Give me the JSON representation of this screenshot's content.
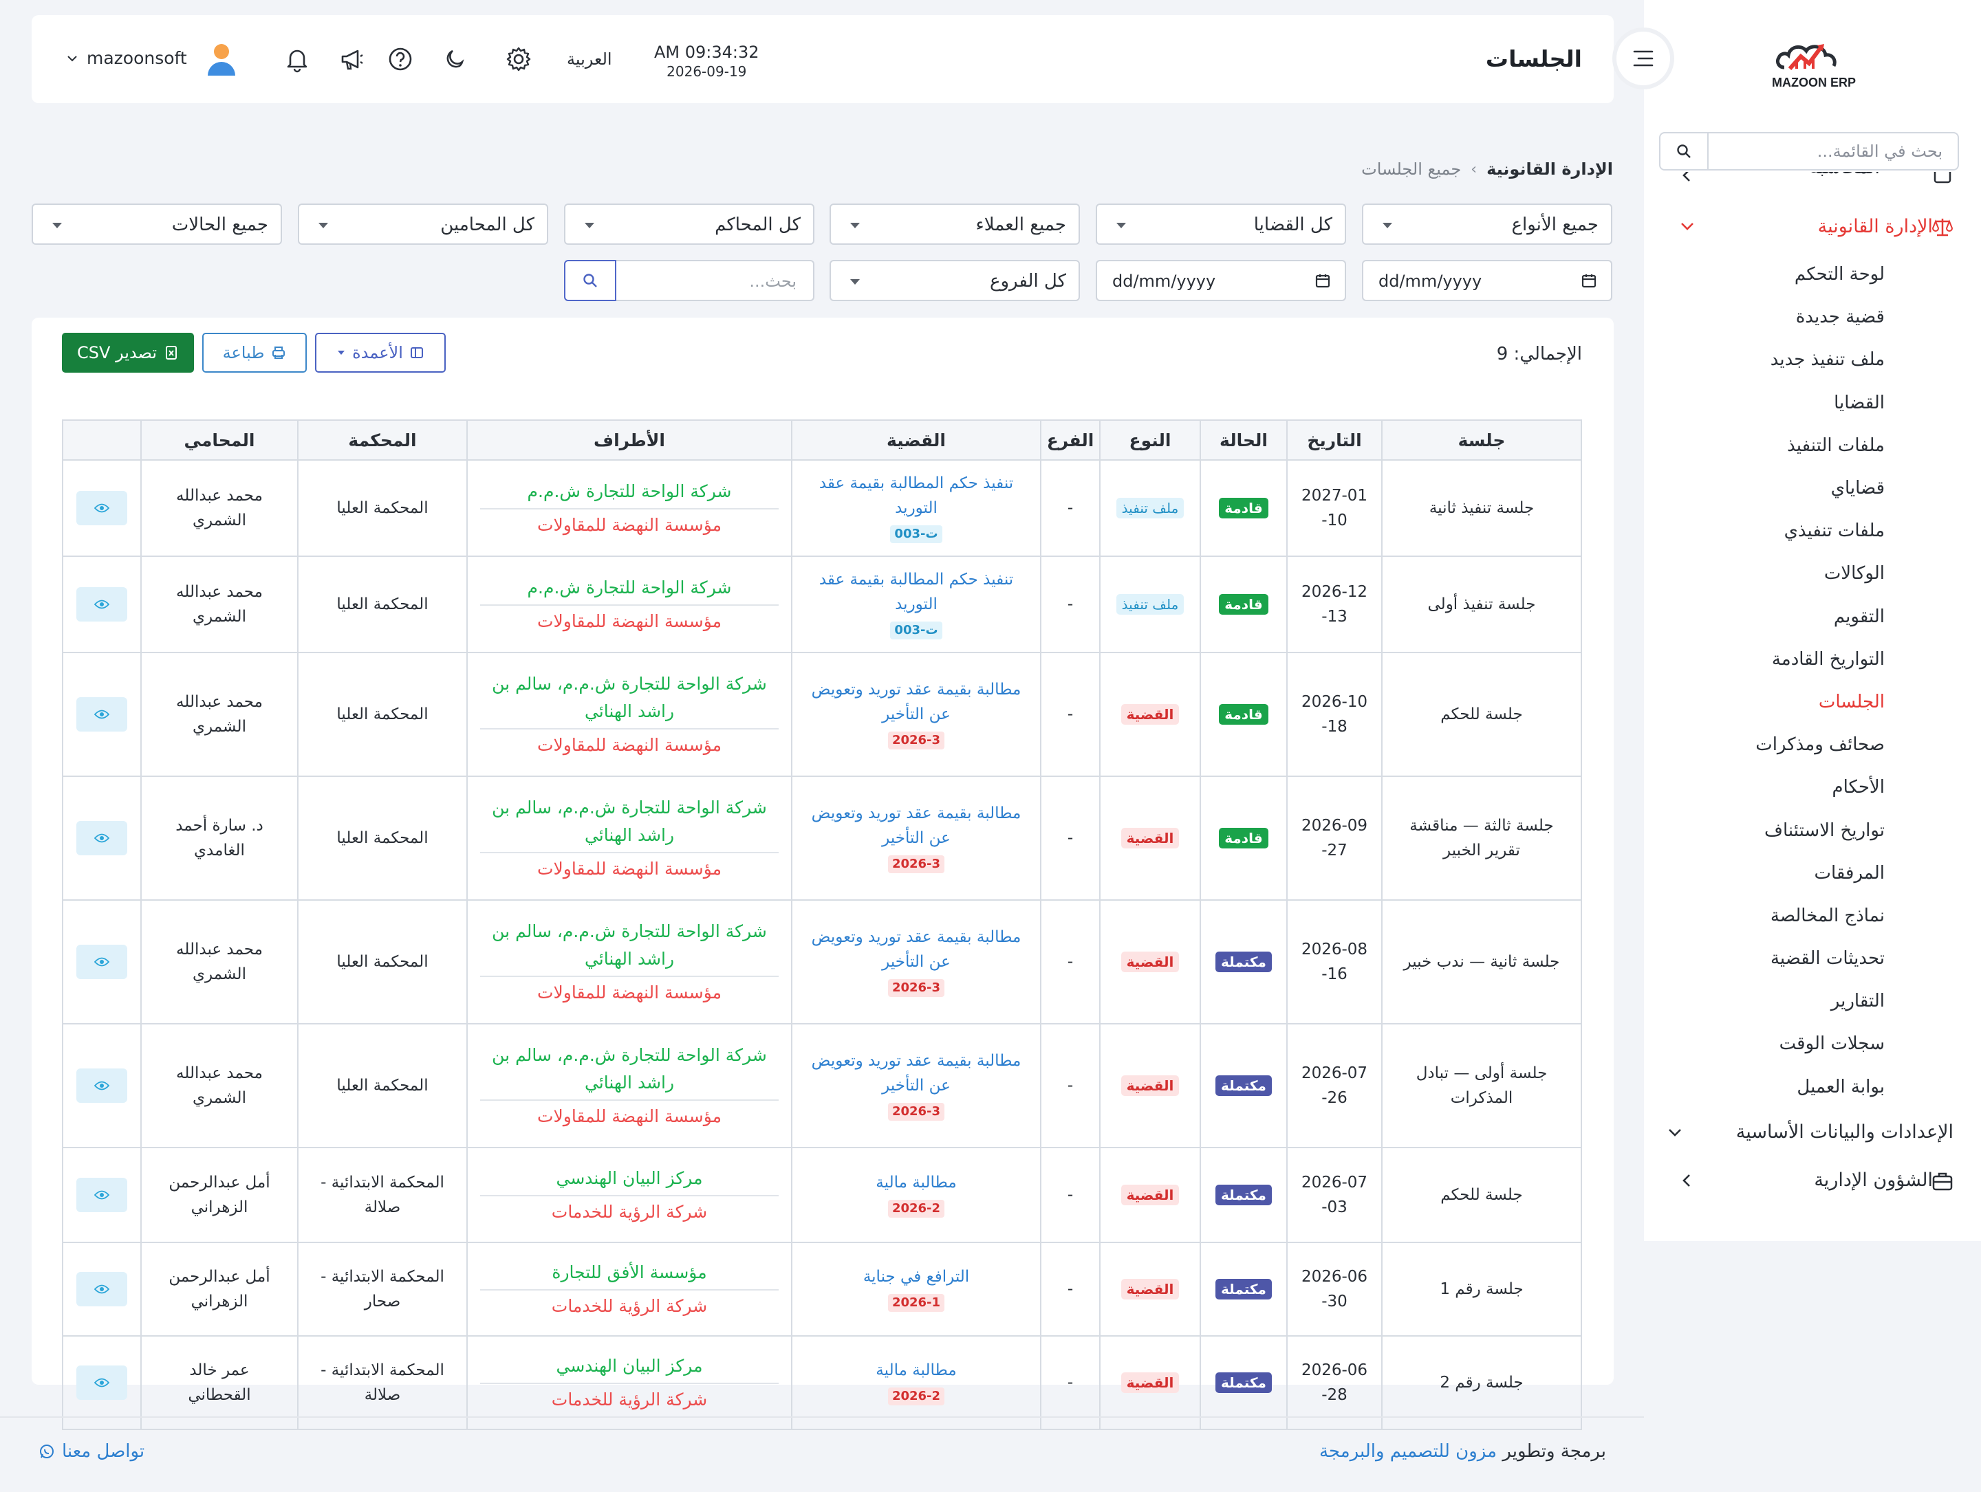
{
  "brand": {
    "name": "MAZOON ERP"
  },
  "sidebar": {
    "search_placeholder": "بحث في القائمة...",
    "cut_item": "المحاسبة",
    "group_legal": "الإدارة القانونية",
    "items": [
      "لوحة التحكم",
      "قضية جديدة",
      "ملف تنفيذ جديد",
      "القضايا",
      "ملفات التنفيذ",
      "قضاياي",
      "ملفات تنفيذي",
      "الوكالات",
      "التقويم",
      "التواريخ القادمة",
      "الجلسات",
      "صحائف ومذكرات",
      "الأحكام",
      "تواريخ الاستئناف",
      "المرفقات",
      "نماذج المخالصة",
      "تحديثات القضية",
      "التقارير",
      "سجلات الوقت",
      "بوابة العميل"
    ],
    "current_index": 10,
    "group_settings": "الإعدادات والبيانات الأساسية",
    "group_admin": "الشؤون الإدارية"
  },
  "header": {
    "title": "الجلسات",
    "time": "AM 09:34:32",
    "date": "2026-09-19",
    "language": "العربية",
    "user": "mazoonsoft"
  },
  "breadcrumb": {
    "root": "الإدارة القانونية",
    "separator": "›",
    "current": "جميع الجلسات"
  },
  "filters": {
    "types": "جميع الأنواع",
    "cases": "كل القضايا",
    "clients": "جميع العملاء",
    "courts": "كل المحاكم",
    "lawyers": "كل المحامين",
    "statuses": "جميع الحالات",
    "date_from": "dd/mm/yyyy",
    "date_to": "dd/mm/yyyy",
    "branches": "كل الفروع",
    "search_placeholder": "بحث..."
  },
  "toolbar": {
    "total_label": "الإجمالي: 9",
    "columns_label": "الأعمدة",
    "print_label": "طباعة",
    "csv_label": "تصدير CSV"
  },
  "table": {
    "headers": [
      "جلسة",
      "التاريخ",
      "الحالة",
      "النوع",
      "الفرع",
      "القضية",
      "الأطراف",
      "المحكمة",
      "المحامي",
      ""
    ],
    "rows": [
      {
        "session": "جلسة تنفيذ ثانية",
        "date": "2027-01-10",
        "status": "قادمة",
        "status_kind": "green",
        "type": "ملف تنفيذ",
        "type_kind": "cyan",
        "branch": "-",
        "case_title": "تنفيذ حكم المطالبة بقيمة عقد التوريد",
        "case_no": "ت-003",
        "case_no_kind": "cyan",
        "party_a": "شركة الواحة للتجارة ش.م.م",
        "party_b": "مؤسسة النهضة للمقاولات",
        "court": "المحكمة العليا",
        "lawyer": "محمد عبدالله الشمري"
      },
      {
        "session": "جلسة تنفيذ أولى",
        "date": "2026-12-13",
        "status": "قادمة",
        "status_kind": "green",
        "type": "ملف تنفيذ",
        "type_kind": "cyan",
        "branch": "-",
        "case_title": "تنفيذ حكم المطالبة بقيمة عقد التوريد",
        "case_no": "ت-003",
        "case_no_kind": "cyan",
        "party_a": "شركة الواحة للتجارة ش.م.م",
        "party_b": "مؤسسة النهضة للمقاولات",
        "court": "المحكمة العليا",
        "lawyer": "محمد عبدالله الشمري"
      },
      {
        "session": "جلسة للحكم",
        "date": "2026-10-18",
        "status": "قادمة",
        "status_kind": "green",
        "type": "القضية",
        "type_kind": "red",
        "branch": "-",
        "case_title": "مطالبة بقيمة عقد توريد وتعويض عن التأخير",
        "case_no": "2026-3",
        "case_no_kind": "red",
        "party_a": "شركة الواحة للتجارة ش.م.م، سالم بن راشد الهنائي",
        "party_b": "مؤسسة النهضة للمقاولات",
        "court": "المحكمة العليا",
        "lawyer": "محمد عبدالله الشمري"
      },
      {
        "session": "جلسة ثالثة — مناقشة تقرير الخبير",
        "date": "2026-09-27",
        "status": "قادمة",
        "status_kind": "green",
        "type": "القضية",
        "type_kind": "red",
        "branch": "-",
        "case_title": "مطالبة بقيمة عقد توريد وتعويض عن التأخير",
        "case_no": "2026-3",
        "case_no_kind": "red",
        "party_a": "شركة الواحة للتجارة ش.م.م، سالم بن راشد الهنائي",
        "party_b": "مؤسسة النهضة للمقاولات",
        "court": "المحكمة العليا",
        "lawyer": "د. سارة أحمد الغامدي"
      },
      {
        "session": "جلسة ثانية — ندب خبير",
        "date": "2026-08-16",
        "status": "مكتملة",
        "status_kind": "navy",
        "type": "القضية",
        "type_kind": "red",
        "branch": "-",
        "case_title": "مطالبة بقيمة عقد توريد وتعويض عن التأخير",
        "case_no": "2026-3",
        "case_no_kind": "red",
        "party_a": "شركة الواحة للتجارة ش.م.م، سالم بن راشد الهنائي",
        "party_b": "مؤسسة النهضة للمقاولات",
        "court": "المحكمة العليا",
        "lawyer": "محمد عبدالله الشمري"
      },
      {
        "session": "جلسة أولى — تبادل المذكرات",
        "date": "2026-07-26",
        "status": "مكتملة",
        "status_kind": "navy",
        "type": "القضية",
        "type_kind": "red",
        "branch": "-",
        "case_title": "مطالبة بقيمة عقد توريد وتعويض عن التأخير",
        "case_no": "2026-3",
        "case_no_kind": "red",
        "party_a": "شركة الواحة للتجارة ش.م.م، سالم بن راشد الهنائي",
        "party_b": "مؤسسة النهضة للمقاولات",
        "court": "المحكمة العليا",
        "lawyer": "محمد عبدالله الشمري"
      },
      {
        "session": "جلسة للحكم",
        "date": "2026-07-03",
        "status": "مكتملة",
        "status_kind": "navy",
        "type": "القضية",
        "type_kind": "red",
        "branch": "-",
        "case_title": "مطالبة مالية",
        "case_no": "2026-2",
        "case_no_kind": "red",
        "party_a": "مركز البيان الهندسي",
        "party_b": "شركة الرؤية للخدمات",
        "court": "المحكمة الابتدائية - صلالة",
        "lawyer": "أمل عبدالرحمن الزهراني"
      },
      {
        "session": "جلسة رقم 1",
        "date": "2026-06-30",
        "status": "مكتملة",
        "status_kind": "navy",
        "type": "القضية",
        "type_kind": "red",
        "branch": "-",
        "case_title": "الترافع في جناية",
        "case_no": "2026-1",
        "case_no_kind": "red",
        "party_a": "مؤسسة الأفق للتجارة",
        "party_b": "شركة الرؤية للخدمات",
        "court": "المحكمة الابتدائية - صحار",
        "lawyer": "أمل عبدالرحمن الزهراني"
      },
      {
        "session": "جلسة رقم 2",
        "date": "2026-06-28",
        "status": "مكتملة",
        "status_kind": "navy",
        "type": "القضية",
        "type_kind": "red",
        "branch": "-",
        "case_title": "مطالبة مالية",
        "case_no": "2026-2",
        "case_no_kind": "red",
        "party_a": "مركز البيان الهندسي",
        "party_b": "شركة الرؤية للخدمات",
        "court": "المحكمة الابتدائية - صلالة",
        "lawyer": "عمر خالد القحطاني"
      }
    ]
  },
  "footer": {
    "credit_prefix": "برمجة وتطوير",
    "credit_link": "مزون للتصميم والبرمجة",
    "contact": "تواصل معنا"
  }
}
